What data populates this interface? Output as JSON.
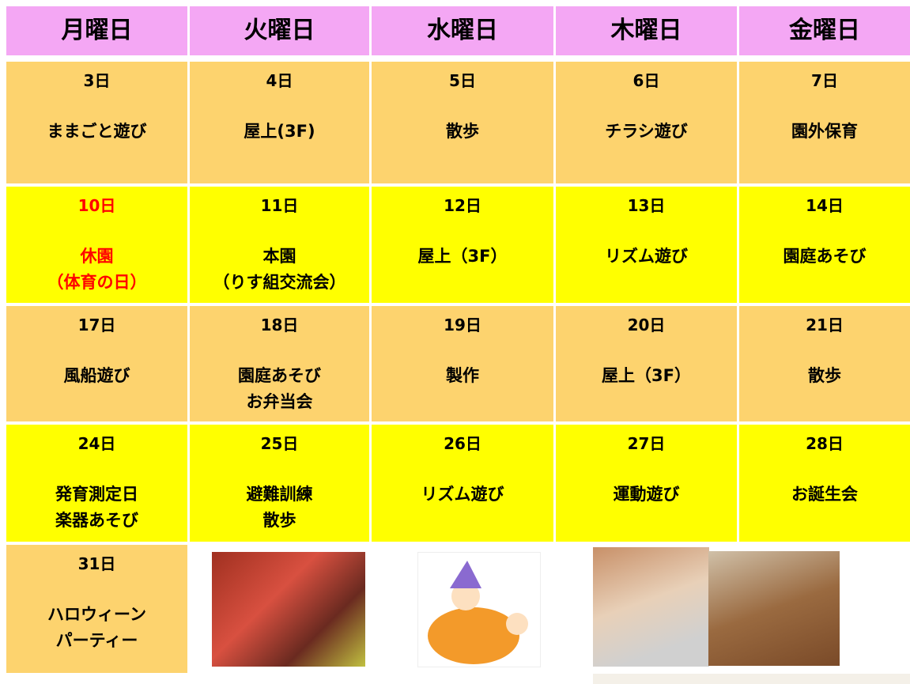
{
  "header": {
    "days": [
      "月曜日",
      "火曜日",
      "水曜日",
      "木曜日",
      "金曜日"
    ]
  },
  "weeks": [
    [
      {
        "date": "3日",
        "lines": [
          "ままごと遊び"
        ]
      },
      {
        "date": "4日",
        "lines": [
          "屋上(3F)"
        ]
      },
      {
        "date": "5日",
        "lines": [
          "散歩"
        ]
      },
      {
        "date": "6日",
        "lines": [
          "チラシ遊び"
        ]
      },
      {
        "date": "7日",
        "lines": [
          "園外保育"
        ]
      }
    ],
    [
      {
        "date": "10日",
        "lines": [
          "休園",
          "（体育の日）"
        ]
      },
      {
        "date": "11日",
        "lines": [
          "本園",
          "（りす組交流会）"
        ]
      },
      {
        "date": "12日",
        "lines": [
          "屋上（3F）"
        ]
      },
      {
        "date": "13日",
        "lines": [
          "リズム遊び"
        ]
      },
      {
        "date": "14日",
        "lines": [
          "園庭あそび"
        ]
      }
    ],
    [
      {
        "date": "17日",
        "lines": [
          "風船遊び"
        ]
      },
      {
        "date": "18日",
        "lines": [
          "園庭あそび",
          "お弁当会"
        ]
      },
      {
        "date": "19日",
        "lines": [
          "製作"
        ]
      },
      {
        "date": "20日",
        "lines": [
          "屋上（3F）"
        ]
      },
      {
        "date": "21日",
        "lines": [
          "散歩"
        ]
      }
    ],
    [
      {
        "date": "24日",
        "lines": [
          "発育測定日",
          "楽器あそび"
        ]
      },
      {
        "date": "25日",
        "lines": [
          "避難訓練",
          "散歩"
        ]
      },
      {
        "date": "26日",
        "lines": [
          "リズム遊び"
        ]
      },
      {
        "date": "27日",
        "lines": [
          "運動遊び"
        ]
      },
      {
        "date": "28日",
        "lines": [
          "お誕生会"
        ]
      }
    ],
    [
      {
        "date": "31日",
        "lines": [
          "ハロウィーン",
          "パーティー"
        ]
      }
    ]
  ]
}
